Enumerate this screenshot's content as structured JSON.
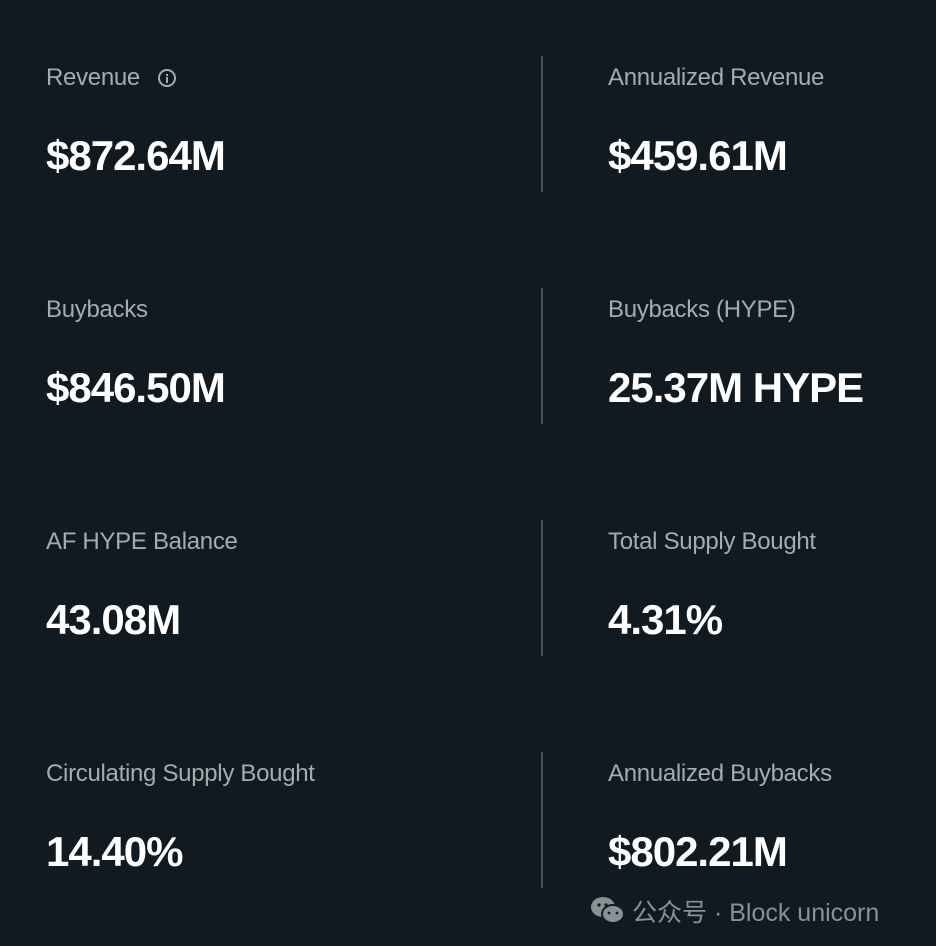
{
  "metrics": [
    {
      "left": {
        "label": "Revenue",
        "value": "$872.64M",
        "icon": "info-icon"
      },
      "right": {
        "label": "Annualized Revenue",
        "value": "$459.61M"
      }
    },
    {
      "left": {
        "label": "Buybacks",
        "value": "$846.50M"
      },
      "right": {
        "label": "Buybacks (HYPE)",
        "value": "25.37M HYPE"
      }
    },
    {
      "left": {
        "label": "AF HYPE Balance",
        "value": "43.08M"
      },
      "right": {
        "label": "Total Supply Bought",
        "value": "4.31%"
      }
    },
    {
      "left": {
        "label": "Circulating Supply Bought",
        "value": "14.40%"
      },
      "right": {
        "label": "Annualized Buybacks",
        "value": "$802.21M"
      }
    }
  ],
  "watermark": {
    "text": "公众号 · Block unicorn",
    "icon": "wechat-icon"
  },
  "colors": {
    "background": "#111a21",
    "label": "#a6abae",
    "value": "#ffffff"
  }
}
